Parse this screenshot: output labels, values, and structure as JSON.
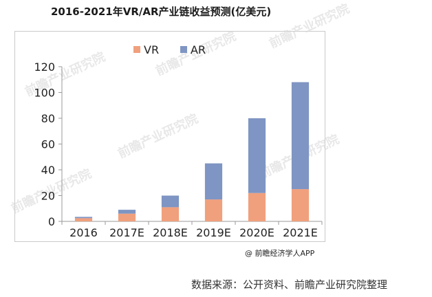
{
  "title": "2016-2021年VR/AR产业链收益预测(亿美元)",
  "credit": "@ 前瞻经济学人APP",
  "source": "数据来源：公开资料、前瞻产业研究院整理",
  "watermark": "前瞻产业研究院",
  "chart_data": {
    "type": "bar",
    "stacked": true,
    "title": "2016-2021年VR/AR产业链收益预测(亿美元)",
    "xlabel": "",
    "ylabel": "",
    "categories": [
      "2016",
      "2017E",
      "2018E",
      "2019E",
      "2020E",
      "2021E"
    ],
    "series": [
      {
        "name": "VR",
        "color": "#f0a07d",
        "values": [
          2.5,
          6,
          11,
          17,
          22,
          25
        ]
      },
      {
        "name": "AR",
        "color": "#7f95c3",
        "values": [
          1,
          3,
          9,
          28,
          58,
          83
        ]
      }
    ],
    "ylim": [
      0,
      120
    ],
    "yticks": [
      0,
      20,
      40,
      60,
      80,
      100,
      120
    ],
    "legend": "top-center",
    "grid": false
  }
}
